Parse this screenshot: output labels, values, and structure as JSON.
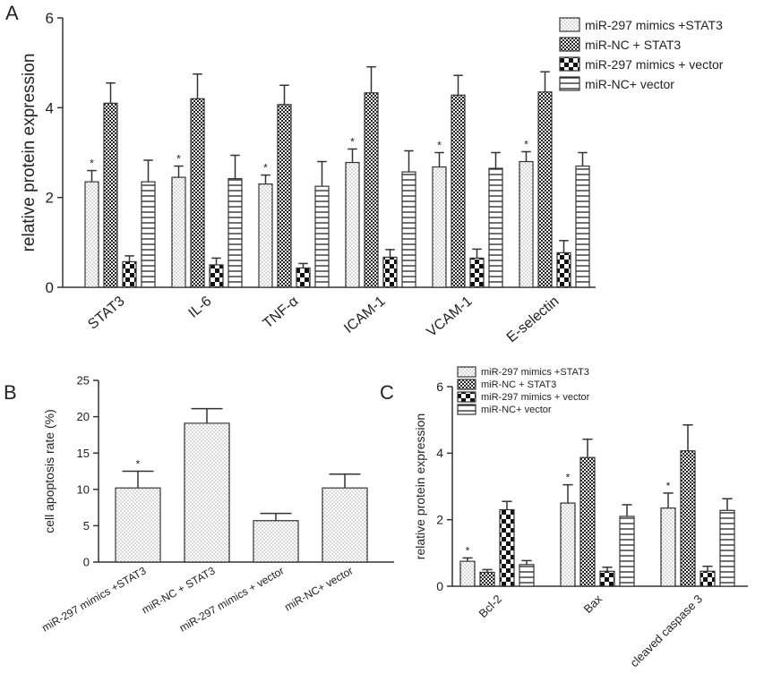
{
  "panels": [
    "A",
    "B",
    "C"
  ],
  "legend_labels": [
    "miR-297 mimics +STAT3",
    "miR-NC + STAT3",
    "miR-297 mimics + vector",
    "miR-NC+ vector"
  ],
  "chart_data": [
    {
      "panel": "A",
      "type": "bar",
      "ylabel": "relative protein expression",
      "ylim": [
        0,
        6
      ],
      "yticks": [
        "0",
        "2",
        "4",
        "6"
      ],
      "categories": [
        "STAT3",
        "IL-6",
        "TNF-α",
        "ICAM-1",
        "VCAM-1",
        "E-selectin"
      ],
      "legend_position": "top-right",
      "series": [
        {
          "name": "miR-297 mimics +STAT3",
          "pattern": "dots",
          "values": [
            2.35,
            2.45,
            2.3,
            2.78,
            2.68,
            2.8
          ],
          "errors": [
            0.25,
            0.25,
            0.2,
            0.3,
            0.32,
            0.22
          ],
          "annotations": [
            "*",
            "*",
            "*",
            "*",
            "*",
            "*"
          ]
        },
        {
          "name": "miR-NC + STAT3",
          "pattern": "crosshatch",
          "values": [
            4.1,
            4.2,
            4.07,
            4.33,
            4.28,
            4.35
          ],
          "errors": [
            0.45,
            0.55,
            0.43,
            0.58,
            0.44,
            0.45
          ],
          "annotations": []
        },
        {
          "name": "miR-297 mimics + vector",
          "pattern": "checker",
          "values": [
            0.57,
            0.5,
            0.43,
            0.67,
            0.65,
            0.77
          ],
          "errors": [
            0.13,
            0.15,
            0.1,
            0.17,
            0.2,
            0.27
          ],
          "annotations": []
        },
        {
          "name": "miR-NC+ vector",
          "pattern": "hlines",
          "values": [
            2.35,
            2.42,
            2.25,
            2.57,
            2.65,
            2.7
          ],
          "errors": [
            0.48,
            0.52,
            0.55,
            0.47,
            0.35,
            0.3
          ],
          "annotations": []
        }
      ]
    },
    {
      "panel": "B",
      "type": "bar",
      "ylabel": "cell apoptosis rate (%)",
      "ylim": [
        0,
        25
      ],
      "yticks": [
        "0",
        "5",
        "10",
        "15",
        "20",
        "25"
      ],
      "categories": [
        "miR-297 mimics +STAT3",
        "miR-NC + STAT3",
        "miR-297 mimics + vector",
        "miR-NC+ vector"
      ],
      "values": [
        10.2,
        19.1,
        5.7,
        10.2
      ],
      "errors": [
        2.3,
        2.0,
        1.0,
        1.9
      ],
      "annotations": [
        "*",
        "",
        "",
        ""
      ]
    },
    {
      "panel": "C",
      "type": "bar",
      "ylabel": "relative protein expression",
      "ylim": [
        0,
        6
      ],
      "yticks": [
        "0",
        "2",
        "4",
        "6"
      ],
      "categories": [
        "Bcl-2",
        "Bax",
        "cleaved caspase 3"
      ],
      "legend_position": "top-left",
      "series": [
        {
          "name": "miR-297 mimics +STAT3",
          "pattern": "dots",
          "values": [
            0.75,
            2.5,
            2.35
          ],
          "errors": [
            0.1,
            0.55,
            0.45
          ],
          "annotations": [
            "*",
            "*",
            "*"
          ]
        },
        {
          "name": "miR-NC + STAT3",
          "pattern": "crosshatch",
          "values": [
            0.42,
            3.87,
            4.07
          ],
          "errors": [
            0.08,
            0.55,
            0.78
          ],
          "annotations": []
        },
        {
          "name": "miR-297 mimics + vector",
          "pattern": "checker",
          "values": [
            2.3,
            0.45,
            0.45
          ],
          "errors": [
            0.25,
            0.12,
            0.15
          ],
          "annotations": []
        },
        {
          "name": "miR-NC+ vector",
          "pattern": "hlines",
          "values": [
            0.65,
            2.1,
            2.28
          ],
          "errors": [
            0.12,
            0.35,
            0.35
          ],
          "annotations": []
        }
      ]
    }
  ]
}
